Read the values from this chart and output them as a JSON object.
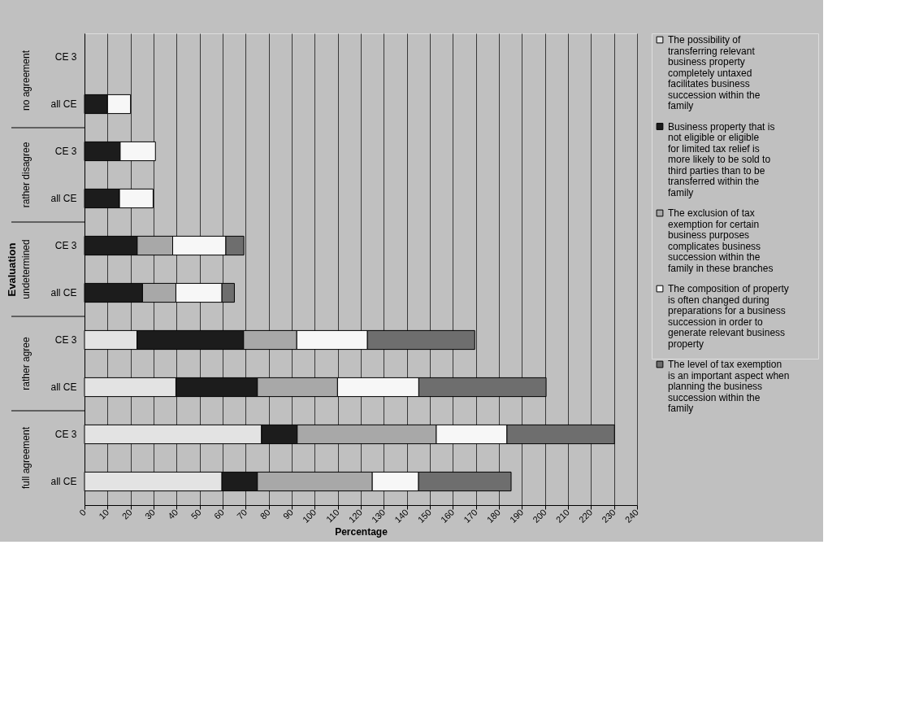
{
  "chart_data": {
    "type": "bar",
    "orientation": "horizontal",
    "stacked": true,
    "categories": [
      "CE 3",
      "all CE",
      "CE 3",
      "all CE",
      "CE 3",
      "all CE",
      "CE 3",
      "all CE",
      "CE 3",
      "all CE"
    ],
    "annotations": [
      "no agreement",
      "rather disagree",
      "undetermined",
      "rather agree",
      "full agreement"
    ],
    "xlabel": "Percentage",
    "ylabel": "Evaluation",
    "xlim": [
      0,
      240
    ],
    "xticks": [
      0,
      10,
      20,
      30,
      40,
      50,
      60,
      70,
      80,
      90,
      100,
      110,
      120,
      130,
      140,
      150,
      160,
      170,
      180,
      190,
      200,
      210,
      220,
      230,
      240
    ],
    "grid": "x",
    "legend": "right",
    "series": [
      {
        "name": "The possibility of transferring relevant business property completely untaxed facilitates business succession within the family",
        "color": "#e3e3e3",
        "values": [
          null,
          null,
          null,
          null,
          null,
          null,
          22.8,
          39.7,
          76.9,
          59.7
        ]
      },
      {
        "name": "Business property that is not eligible or eligible for limited tax relief is more likely to be sold to third parties than to be transferred within the family",
        "color": "#1c1c1c",
        "values": [
          null,
          10,
          15.5,
          15.2,
          22.9,
          25.2,
          46.3,
          35.4,
          15.5,
          15.4
        ]
      },
      {
        "name": "The exclusion of tax exemption for certain business purposes complicates business succession within the family in these branches",
        "color": "#a8a8a8",
        "values": [
          null,
          null,
          null,
          null,
          15.4,
          14.5,
          23.1,
          34.8,
          60.4,
          49.9
        ]
      },
      {
        "name": "The composition of property is often changed during preparations for a business succession in order to generate relevant business property",
        "color": "#f7f7f7",
        "values": [
          null,
          10,
          15.3,
          14.6,
          23.1,
          20.0,
          30.7,
          35.3,
          30.7,
          20.1
        ]
      },
      {
        "name": "The level of tax exemption is an important aspect when planning the business succession within the family",
        "color": "#6e6e6e",
        "values": [
          null,
          null,
          null,
          null,
          7.8,
          5.4,
          46.6,
          55.3,
          46.7,
          40.2
        ]
      }
    ]
  }
}
